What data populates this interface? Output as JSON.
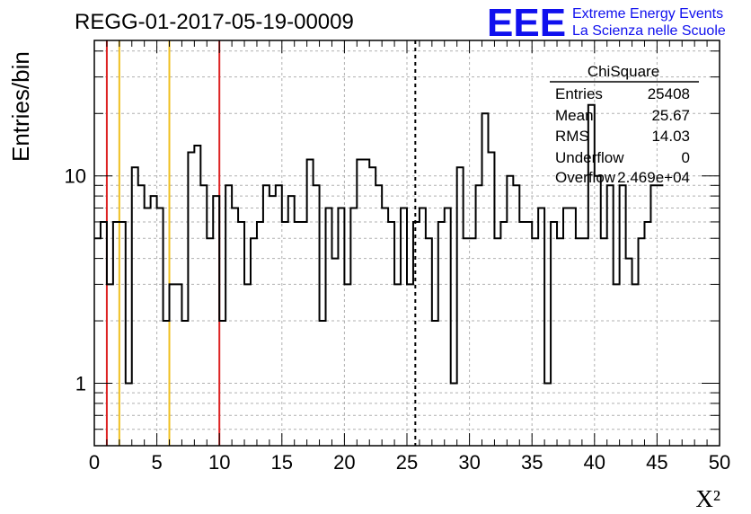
{
  "title": "REGG-01-2017-05-19-00009",
  "logo": {
    "text": "EEE",
    "line1": "Extreme Energy Events",
    "line2": "La Scienza nelle Scuole",
    "color": "#1010ee"
  },
  "stats": {
    "title": "ChiSquare",
    "rows": [
      {
        "label": "Entries",
        "value": "25408"
      },
      {
        "label": "Mean",
        "value": "25.67"
      },
      {
        "label": "RMS",
        "value": "14.03"
      },
      {
        "label": "Underflow",
        "value": "0"
      },
      {
        "label": "Overflow",
        "value": "2.469e+04"
      }
    ]
  },
  "chart_data": {
    "type": "histogram",
    "xlabel": "X²",
    "ylabel": "Entries/bin",
    "xlim": [
      0,
      50
    ],
    "ylim": [
      0.5,
      45
    ],
    "yscale": "log",
    "grid": true,
    "bin_width": 0.5,
    "xticks": [
      "0",
      "5",
      "10",
      "15",
      "20",
      "25",
      "30",
      "35",
      "40",
      "45",
      "50"
    ],
    "yticks": [
      {
        "value": 1,
        "label": "1"
      },
      {
        "value": 10,
        "label": "10"
      }
    ],
    "values": [
      5,
      6,
      3,
      6,
      6,
      1,
      11,
      9,
      7,
      8,
      7,
      2,
      3,
      3,
      2,
      13,
      14,
      9,
      5,
      8,
      2,
      9,
      7,
      6,
      3,
      5,
      6,
      9,
      8,
      9,
      6,
      8,
      6,
      6,
      12,
      9,
      2,
      7,
      4,
      7,
      3,
      7,
      12,
      12,
      11,
      9,
      7,
      6,
      3,
      7,
      3,
      6,
      7,
      5,
      2,
      6,
      7,
      1,
      11,
      5,
      5,
      9,
      20,
      13,
      5,
      6,
      10,
      9,
      6,
      6,
      5,
      7,
      1,
      6,
      5,
      7,
      7,
      5,
      5,
      22,
      10,
      5,
      9,
      3,
      9,
      4,
      3,
      5,
      6,
      9,
      9
    ]
  },
  "markers": [
    {
      "x": 1,
      "color": "#dd2222"
    },
    {
      "x": 2,
      "color": "#f0c020"
    },
    {
      "x": 6,
      "color": "#f0c020"
    },
    {
      "x": 10,
      "color": "#dd2222"
    },
    {
      "x": 25.67,
      "color": "#000000",
      "style": "dashed"
    }
  ]
}
